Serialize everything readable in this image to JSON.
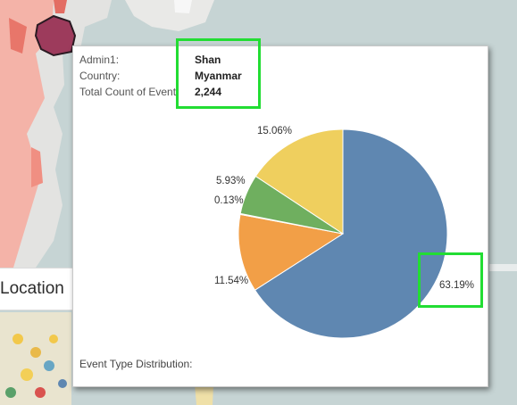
{
  "tooltip": {
    "admin1_label": "Admin1:",
    "admin1_value": "Shan",
    "country_label": "Country:",
    "country_value": "Myanmar",
    "count_label": "Total Count of Event:",
    "count_value": "2,244",
    "distribution_title": "Event Type Distribution:"
  },
  "section": {
    "title": "Location"
  },
  "chart_data": {
    "type": "pie",
    "values": [
      63.19,
      11.54,
      0.13,
      5.93,
      15.06
    ],
    "labels": [
      "63.19%",
      "11.54%",
      "0.13%",
      "5.93%",
      "15.06%"
    ],
    "colors": [
      "#5f87b1",
      "#f29f47",
      "#e15f5e",
      "#d95c5c",
      "#6faf5f",
      "#efcf5e"
    ],
    "slice_colors": [
      "#5f87b1",
      "#f29f47",
      "#e15f5e",
      "#6faf5f",
      "#efcf5e"
    ]
  }
}
